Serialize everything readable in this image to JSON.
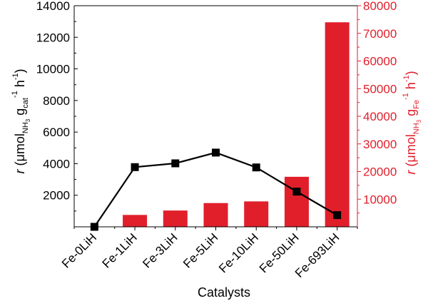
{
  "chart_data": {
    "type": "bar",
    "xlabel": "Catalysts",
    "categories": [
      "Fe-0LiH",
      "Fe-1LiH",
      "Fe-3LiH",
      "Fe-5LiH",
      "Fe-10LiH",
      "Fe-50LiH",
      "Fe-693LiH"
    ],
    "y_left": {
      "label_parts": {
        "r": "r",
        "open": " (μmol",
        "sub1": "NH",
        "sub1b": "3",
        "g": " g",
        "sub2": "cat",
        "sup1": "-1",
        "h": " h",
        "sup2": "-1",
        "close": ")"
      },
      "ylim": [
        0,
        14000
      ],
      "ticks": [
        2000,
        4000,
        6000,
        8000,
        10000,
        12000,
        14000
      ],
      "tick_labels": [
        "2000",
        "4000",
        "6000",
        "8000",
        "10000",
        "12000",
        "14000"
      ]
    },
    "y_right": {
      "label_parts": {
        "r": "r",
        "open": " (μmol",
        "sub1": "NH",
        "sub1b": "3",
        "g": " g",
        "sub2": "Fe",
        "sup1": "-1",
        "h": " h",
        "sup2": "-1",
        "close": ")"
      },
      "ylim": [
        0,
        80000
      ],
      "ticks": [
        10000,
        20000,
        30000,
        40000,
        50000,
        60000,
        70000,
        80000
      ],
      "tick_labels": [
        "10000",
        "20000",
        "30000",
        "40000",
        "50000",
        "60000",
        "70000",
        "80000"
      ]
    },
    "series": [
      {
        "type": "line",
        "axis": "left",
        "color": "#000000",
        "marker": "square",
        "values": [
          0,
          3780,
          4020,
          4700,
          3760,
          2230,
          740
        ]
      },
      {
        "type": "bar",
        "axis": "right",
        "color": "#e11f2b",
        "values": [
          null,
          4300,
          5900,
          8600,
          9200,
          18100,
          74000
        ]
      }
    ],
    "colors": {
      "left_axis": "#000000",
      "right_axis": "#e11f2b"
    }
  }
}
